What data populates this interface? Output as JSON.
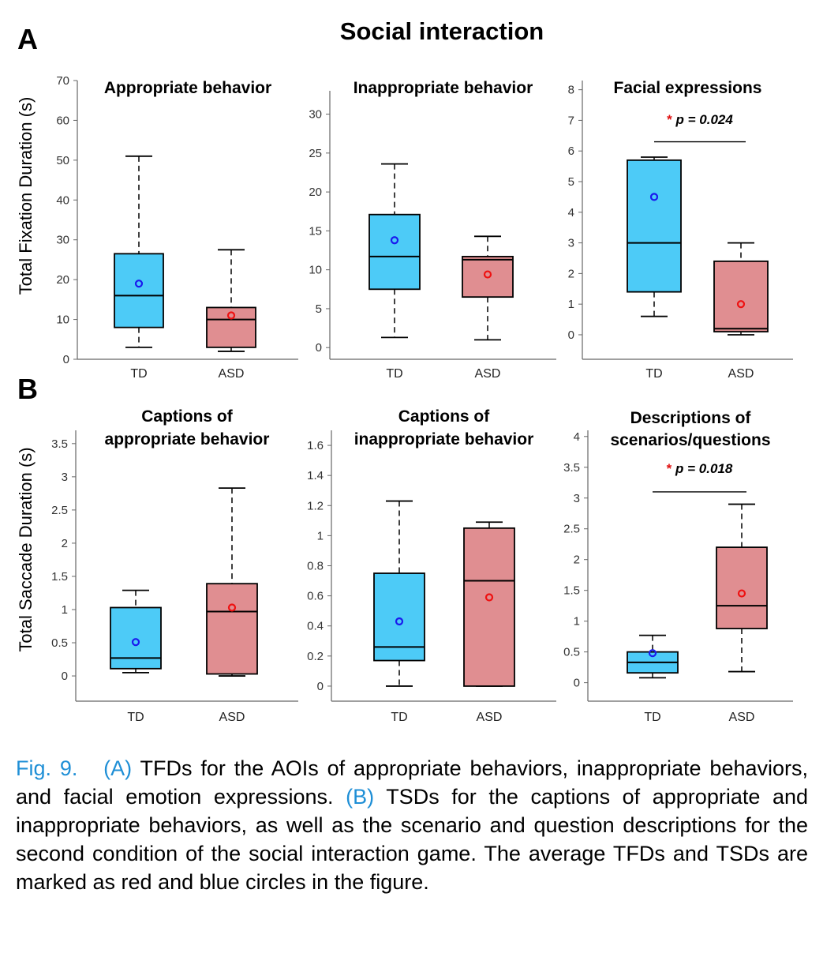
{
  "figure": {
    "main_title": "Social interaction",
    "panel_labels": [
      "A",
      "B"
    ],
    "ylabel_A": "Total Fixation Duration (s)",
    "ylabel_B": "Total Saccade Duration (s)"
  },
  "colors": {
    "td": "#4dcbf7",
    "asd": "#e08e91",
    "mean_td": "#1a1aee",
    "mean_asd": "#ee1111",
    "significance_star": "#e01010"
  },
  "chart_data": [
    {
      "type": "box",
      "title": "Appropriate behavior",
      "categories": [
        "TD",
        "ASD"
      ],
      "ylim": [
        0,
        70
      ],
      "yticks": [
        0,
        10,
        20,
        30,
        40,
        50,
        60,
        70
      ],
      "boxes": [
        {
          "name": "TD",
          "whisker_low": 3.0,
          "q1": 8.0,
          "median": 16.0,
          "q3": 26.5,
          "whisker_high": 51.0,
          "mean": 19.0
        },
        {
          "name": "ASD",
          "whisker_low": 2.0,
          "q1": 3.0,
          "median": 10.0,
          "q3": 13.0,
          "whisker_high": 27.5,
          "mean": 11.0
        }
      ]
    },
    {
      "type": "box",
      "title": "Inappropriate behavior",
      "categories": [
        "TD",
        "ASD"
      ],
      "ylim": [
        -1.5,
        33
      ],
      "yticks": [
        0,
        5,
        10,
        15,
        20,
        25,
        30
      ],
      "boxes": [
        {
          "name": "TD",
          "whisker_low": 1.3,
          "q1": 7.5,
          "median": 11.7,
          "q3": 17.1,
          "whisker_high": 23.6,
          "mean": 13.8
        },
        {
          "name": "ASD",
          "whisker_low": 1.0,
          "q1": 6.5,
          "median": 11.3,
          "q3": 11.7,
          "whisker_high": 14.3,
          "mean": 9.4
        }
      ]
    },
    {
      "type": "box",
      "title": "Facial expressions",
      "categories": [
        "TD",
        "ASD"
      ],
      "ylim": [
        -0.8,
        8.3
      ],
      "yticks": [
        0,
        1,
        2,
        3,
        4,
        5,
        6,
        7,
        8
      ],
      "significance": {
        "star": "*",
        "text": "p = 0.024",
        "y": 6.3
      },
      "boxes": [
        {
          "name": "TD",
          "whisker_low": 0.6,
          "q1": 1.4,
          "median": 3.0,
          "q3": 5.7,
          "whisker_high": 5.8,
          "mean": 4.5
        },
        {
          "name": "ASD",
          "whisker_low": 0.0,
          "q1": 0.1,
          "median": 0.2,
          "q3": 2.4,
          "whisker_high": 3.0,
          "mean": 1.0
        }
      ]
    },
    {
      "type": "box",
      "title": "Captions of appropriate behavior",
      "title_lines": [
        "Captions of",
        "appropriate behavior"
      ],
      "categories": [
        "TD",
        "ASD"
      ],
      "ylim": [
        -0.38,
        3.7
      ],
      "yticks": [
        0,
        0.5,
        1,
        1.5,
        2,
        2.5,
        3,
        3.5
      ],
      "boxes": [
        {
          "name": "TD",
          "whisker_low": 0.05,
          "q1": 0.11,
          "median": 0.27,
          "q3": 1.03,
          "whisker_high": 1.29,
          "mean": 0.51
        },
        {
          "name": "ASD",
          "whisker_low": 0.0,
          "q1": 0.03,
          "median": 0.97,
          "q3": 1.39,
          "whisker_high": 2.83,
          "mean": 1.03
        }
      ]
    },
    {
      "type": "box",
      "title": "Captions of inappropriate behavior",
      "title_lines": [
        "Captions of",
        "inappropriate behavior"
      ],
      "categories": [
        "TD",
        "ASD"
      ],
      "ylim": [
        -0.1,
        1.7
      ],
      "yticks": [
        0,
        0.2,
        0.4,
        0.6,
        0.8,
        1,
        1.2,
        1.4,
        1.6
      ],
      "boxes": [
        {
          "name": "TD",
          "whisker_low": 0.0,
          "q1": 0.17,
          "median": 0.26,
          "q3": 0.75,
          "whisker_high": 1.23,
          "mean": 0.43
        },
        {
          "name": "ASD",
          "whisker_low": 0.0,
          "q1": 0.0,
          "median": 0.7,
          "q3": 1.05,
          "whisker_high": 1.09,
          "mean": 0.59
        }
      ]
    },
    {
      "type": "box",
      "title": "Descriptions of scenarios/questions",
      "title_lines": [
        "Descriptions of",
        "scenarios/questions"
      ],
      "categories": [
        "TD",
        "ASD"
      ],
      "ylim": [
        -0.3,
        4.1
      ],
      "yticks": [
        0,
        0.5,
        1,
        1.5,
        2,
        2.5,
        3,
        3.5,
        4
      ],
      "significance": {
        "star": "*",
        "text": "p = 0.018",
        "y": 3.1
      },
      "boxes": [
        {
          "name": "TD",
          "whisker_low": 0.08,
          "q1": 0.16,
          "median": 0.33,
          "q3": 0.5,
          "whisker_high": 0.77,
          "mean": 0.48
        },
        {
          "name": "ASD",
          "whisker_low": 0.18,
          "q1": 0.88,
          "median": 1.25,
          "q3": 2.2,
          "whisker_high": 2.9,
          "mean": 1.45
        }
      ]
    }
  ],
  "caption": {
    "fig_label": "Fig. 9.",
    "part_a_label": "(A)",
    "part_a_text": "TFDs for the AOIs of appropriate behaviors, inappropriate behaviors, and facial emotion expressions.",
    "part_b_label": "(B)",
    "part_b_text": "TSDs for the captions of appropriate and inappropriate behaviors, as well as the scenario and question descriptions for the second condition of the social interaction game. The average TFDs and TSDs are marked as red and blue circles in the figure."
  }
}
